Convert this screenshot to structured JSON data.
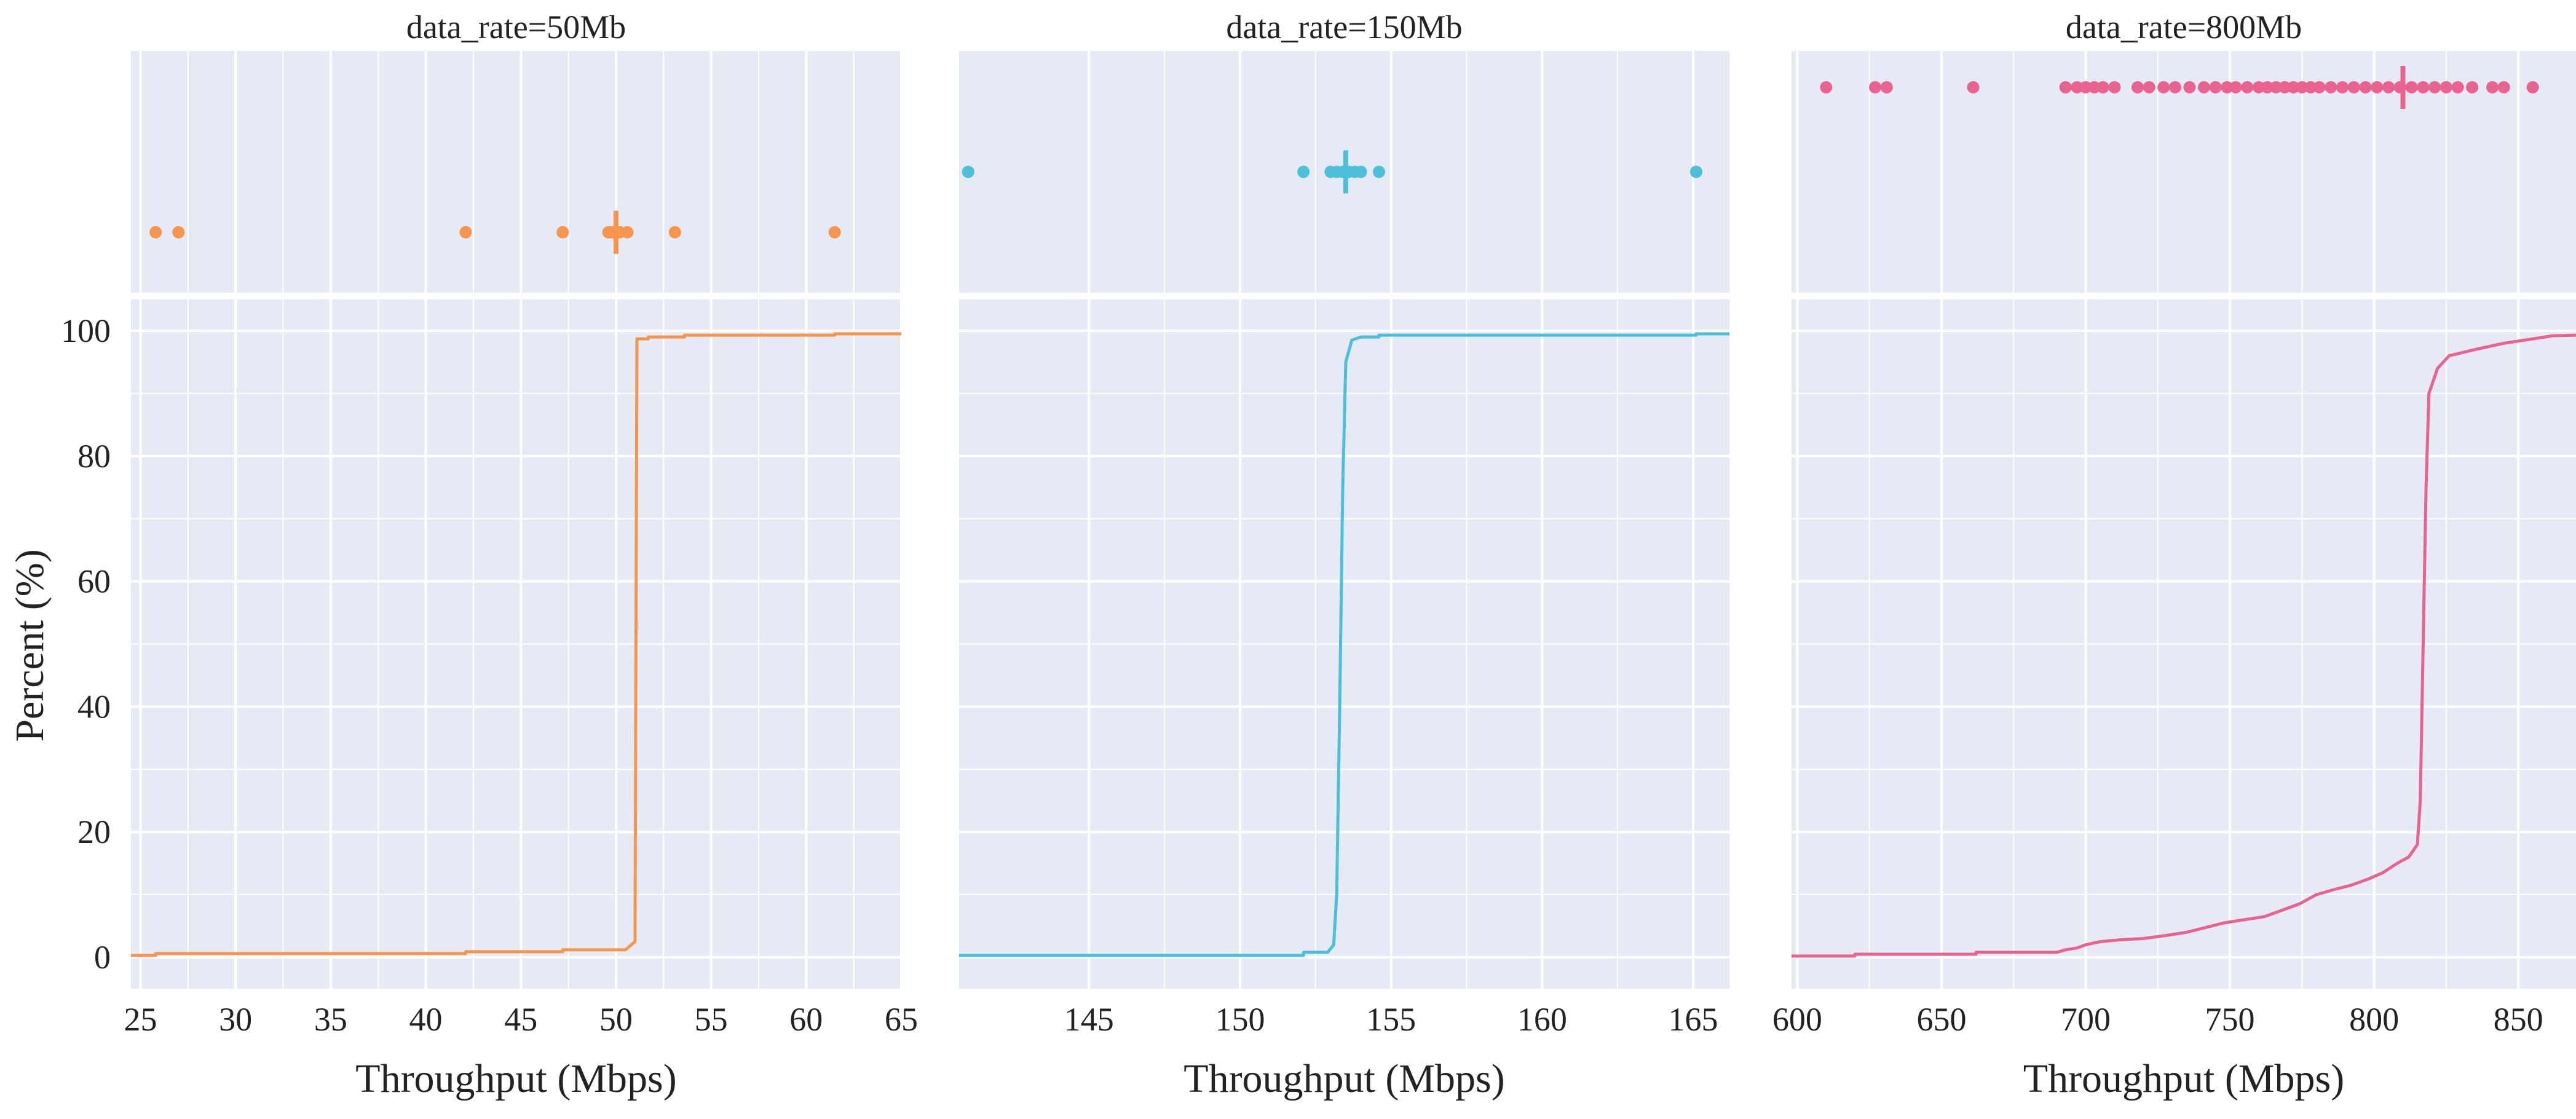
{
  "chart_data": {
    "type": "line",
    "subtype": "ecdf_with_strip",
    "ylabel": "Percent (%)",
    "ylim": [
      -5,
      105
    ],
    "yticks": [
      0,
      20,
      40,
      60,
      80,
      100
    ],
    "background": "#E5EAF5",
    "grid_color": "#FFFFFF",
    "panels": [
      {
        "title": "data_rate=50Mb",
        "xlabel": "Throughput (Mbps)",
        "color": "#F5954F",
        "xlim": [
          24.5,
          65
        ],
        "xticks": [
          25,
          30,
          35,
          40,
          45,
          50,
          55,
          60,
          65
        ],
        "mean": 50.0,
        "mean_y": 0.25,
        "strip_points": [
          {
            "x": 25.8,
            "y": 0.25
          },
          {
            "x": 27.0,
            "y": 0.25
          },
          {
            "x": 42.1,
            "y": 0.25
          },
          {
            "x": 47.2,
            "y": 0.25
          },
          {
            "x": 49.6,
            "y": 0.25
          },
          {
            "x": 49.8,
            "y": 0.25
          },
          {
            "x": 50.0,
            "y": 0.25
          },
          {
            "x": 50.2,
            "y": 0.25
          },
          {
            "x": 50.6,
            "y": 0.25
          },
          {
            "x": 53.1,
            "y": 0.25
          },
          {
            "x": 61.5,
            "y": 0.25
          }
        ],
        "ecdf": [
          [
            24.5,
            0.3
          ],
          [
            25.8,
            0.3
          ],
          [
            25.8,
            0.6
          ],
          [
            42.1,
            0.6
          ],
          [
            42.1,
            0.9
          ],
          [
            47.2,
            0.9
          ],
          [
            47.2,
            1.2
          ],
          [
            50.5,
            1.2
          ],
          [
            50.8,
            2.0
          ],
          [
            51.0,
            2.5
          ],
          [
            51.05,
            50
          ],
          [
            51.1,
            98.7
          ],
          [
            51.7,
            98.7
          ],
          [
            51.7,
            99.0
          ],
          [
            53.6,
            99.0
          ],
          [
            53.6,
            99.3
          ],
          [
            61.5,
            99.3
          ],
          [
            61.5,
            99.5
          ],
          [
            65,
            99.5
          ]
        ]
      },
      {
        "title": "data_rate=150Mb",
        "xlabel": "Throughput (Mbps)",
        "color": "#4DBFD9",
        "xlim": [
          140.7,
          166.2
        ],
        "xticks": [
          145,
          150,
          155,
          160,
          165
        ],
        "mean": 153.5,
        "mean_y": 0.5,
        "strip_points": [
          {
            "x": 141.0,
            "y": 0.5
          },
          {
            "x": 152.1,
            "y": 0.5
          },
          {
            "x": 153.0,
            "y": 0.5
          },
          {
            "x": 153.2,
            "y": 0.5
          },
          {
            "x": 153.4,
            "y": 0.5
          },
          {
            "x": 153.6,
            "y": 0.5
          },
          {
            "x": 153.8,
            "y": 0.5
          },
          {
            "x": 154.0,
            "y": 0.5
          },
          {
            "x": 154.6,
            "y": 0.5
          },
          {
            "x": 165.1,
            "y": 0.5
          }
        ],
        "ecdf": [
          [
            140.7,
            0.3
          ],
          [
            152.1,
            0.3
          ],
          [
            152.1,
            0.8
          ],
          [
            152.9,
            0.8
          ],
          [
            153.1,
            2.0
          ],
          [
            153.2,
            10
          ],
          [
            153.3,
            40
          ],
          [
            153.4,
            75
          ],
          [
            153.5,
            95
          ],
          [
            153.7,
            98.5
          ],
          [
            154.0,
            99.0
          ],
          [
            154.6,
            99.0
          ],
          [
            154.6,
            99.3
          ],
          [
            165.1,
            99.3
          ],
          [
            165.1,
            99.5
          ],
          [
            166.2,
            99.5
          ]
        ]
      },
      {
        "title": "data_rate=800Mb",
        "xlabel": "Throughput (Mbps)",
        "color": "#E8638F",
        "xlim": [
          598,
          870
        ],
        "xticks": [
          600,
          650,
          700,
          750,
          800,
          850
        ],
        "mean": 810,
        "mean_y": 0.85,
        "strip_points": [
          {
            "x": 610,
            "y": 0.85
          },
          {
            "x": 627,
            "y": 0.85
          },
          {
            "x": 631,
            "y": 0.85
          },
          {
            "x": 661,
            "y": 0.85
          },
          {
            "x": 693,
            "y": 0.85
          },
          {
            "x": 697,
            "y": 0.85
          },
          {
            "x": 700,
            "y": 0.85
          },
          {
            "x": 703,
            "y": 0.85
          },
          {
            "x": 706,
            "y": 0.85
          },
          {
            "x": 710,
            "y": 0.85
          },
          {
            "x": 718,
            "y": 0.85
          },
          {
            "x": 722,
            "y": 0.85
          },
          {
            "x": 727,
            "y": 0.85
          },
          {
            "x": 731,
            "y": 0.85
          },
          {
            "x": 736,
            "y": 0.85
          },
          {
            "x": 741,
            "y": 0.85
          },
          {
            "x": 745,
            "y": 0.85
          },
          {
            "x": 749,
            "y": 0.85
          },
          {
            "x": 752,
            "y": 0.85
          },
          {
            "x": 756,
            "y": 0.85
          },
          {
            "x": 760,
            "y": 0.85
          },
          {
            "x": 763,
            "y": 0.85
          },
          {
            "x": 766,
            "y": 0.85
          },
          {
            "x": 769,
            "y": 0.85
          },
          {
            "x": 772,
            "y": 0.85
          },
          {
            "x": 775,
            "y": 0.85
          },
          {
            "x": 778,
            "y": 0.85
          },
          {
            "x": 781,
            "y": 0.85
          },
          {
            "x": 785,
            "y": 0.85
          },
          {
            "x": 789,
            "y": 0.85
          },
          {
            "x": 793,
            "y": 0.85
          },
          {
            "x": 797,
            "y": 0.85
          },
          {
            "x": 801,
            "y": 0.85
          },
          {
            "x": 805,
            "y": 0.85
          },
          {
            "x": 809,
            "y": 0.85
          },
          {
            "x": 813,
            "y": 0.85
          },
          {
            "x": 817,
            "y": 0.85
          },
          {
            "x": 821,
            "y": 0.85
          },
          {
            "x": 825,
            "y": 0.85
          },
          {
            "x": 829,
            "y": 0.85
          },
          {
            "x": 834,
            "y": 0.85
          },
          {
            "x": 841,
            "y": 0.85
          },
          {
            "x": 845,
            "y": 0.85
          },
          {
            "x": 855,
            "y": 0.85
          }
        ],
        "ecdf": [
          [
            598,
            0.2
          ],
          [
            620,
            0.2
          ],
          [
            620,
            0.5
          ],
          [
            662,
            0.5
          ],
          [
            662,
            0.8
          ],
          [
            690,
            0.8
          ],
          [
            693,
            1.2
          ],
          [
            697,
            1.5
          ],
          [
            700,
            2.0
          ],
          [
            705,
            2.5
          ],
          [
            712,
            2.8
          ],
          [
            720,
            3.0
          ],
          [
            728,
            3.5
          ],
          [
            735,
            4.0
          ],
          [
            742,
            4.8
          ],
          [
            748,
            5.5
          ],
          [
            755,
            6.0
          ],
          [
            762,
            6.5
          ],
          [
            768,
            7.5
          ],
          [
            774,
            8.5
          ],
          [
            780,
            10.0
          ],
          [
            786,
            10.8
          ],
          [
            792,
            11.5
          ],
          [
            798,
            12.5
          ],
          [
            803,
            13.5
          ],
          [
            808,
            15.0
          ],
          [
            812,
            16.0
          ],
          [
            815,
            18.0
          ],
          [
            816,
            25
          ],
          [
            817,
            50
          ],
          [
            818,
            75
          ],
          [
            819,
            90
          ],
          [
            822,
            94
          ],
          [
            826,
            96
          ],
          [
            835,
            97
          ],
          [
            845,
            98
          ],
          [
            855,
            98.7
          ],
          [
            862,
            99.2
          ],
          [
            870,
            99.3
          ]
        ]
      }
    ]
  }
}
